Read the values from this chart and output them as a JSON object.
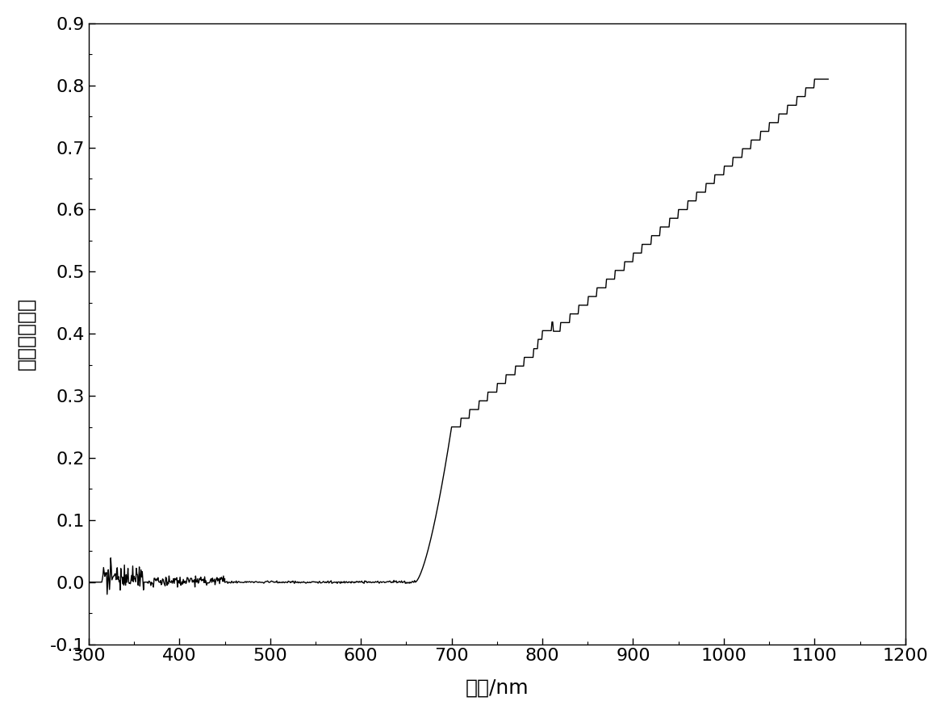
{
  "title": "",
  "xlabel": "波长/nm",
  "ylabel": "反射率（％）",
  "xlim": [
    300,
    1200
  ],
  "ylim": [
    -0.1,
    0.9
  ],
  "xticks": [
    300,
    400,
    500,
    600,
    700,
    800,
    900,
    1000,
    1100,
    1200
  ],
  "yticks": [
    -0.1,
    0.0,
    0.1,
    0.2,
    0.3,
    0.4,
    0.5,
    0.6,
    0.7,
    0.8,
    0.9
  ],
  "ytick_labels": [
    "-0.1",
    "0.0",
    "0.1",
    "0.2",
    "0.3",
    "0.4",
    "0.5",
    "0.6",
    "0.7",
    "0.8",
    "0.9"
  ],
  "line_color": "#000000",
  "line_width": 1.0,
  "background_color": "#ffffff",
  "xlabel_fontsize": 18,
  "ylabel_fontsize": 18,
  "tick_fontsize": 16
}
